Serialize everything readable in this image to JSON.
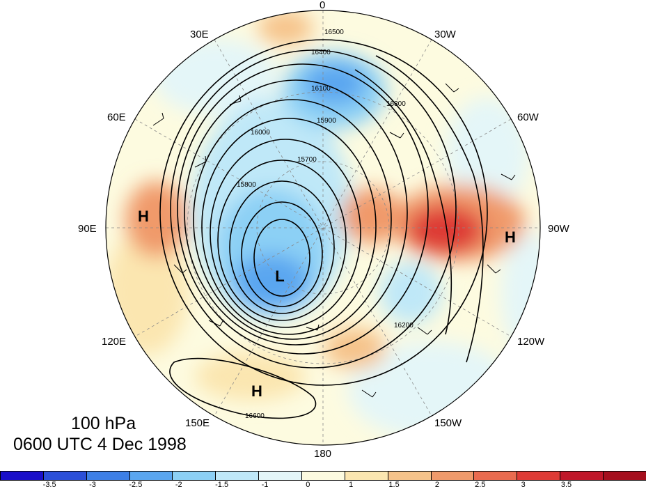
{
  "map": {
    "level_label": "100 hPa",
    "time_label": "0600 UTC 4 Dec 1998",
    "longitude_labels": {
      "top": "0",
      "top_left": "30E",
      "top_right": "30W",
      "upper_left": "60E",
      "upper_right": "60W",
      "left": "90E",
      "right": "90W",
      "lower_left": "120E",
      "lower_right": "120W",
      "bottom_left": "150E",
      "bottom_right": "150W",
      "bottom": "180"
    },
    "pressure_centers": [
      {
        "id": "high-east-siberia",
        "label": "H"
      },
      {
        "id": "high-pacific",
        "label": "H"
      },
      {
        "id": "high-north-america",
        "label": "H"
      },
      {
        "id": "low-polar-vortex",
        "label": "L"
      }
    ],
    "contour_labels": [
      "16500",
      "16400",
      "16300",
      "16200",
      "16100",
      "16000",
      "15900",
      "15800",
      "15700",
      "16600"
    ]
  },
  "colorbar": {
    "colors": [
      "#1a0fc9",
      "#2b4fd8",
      "#3d7fe6",
      "#5aa6f0",
      "#8cd0f5",
      "#bfe8f8",
      "#e4f6f8",
      "#fdfbe0",
      "#fbe6b0",
      "#f6c38a",
      "#f09a6b",
      "#ea6b4f",
      "#de3b36",
      "#c0172a",
      "#a50f1e"
    ],
    "tick_labels": [
      "-3.5",
      "-3",
      "-2.5",
      "-2",
      "-1.5",
      "-1",
      "0",
      "1",
      "1.5",
      "2",
      "2.5",
      "3",
      "3.5"
    ]
  }
}
